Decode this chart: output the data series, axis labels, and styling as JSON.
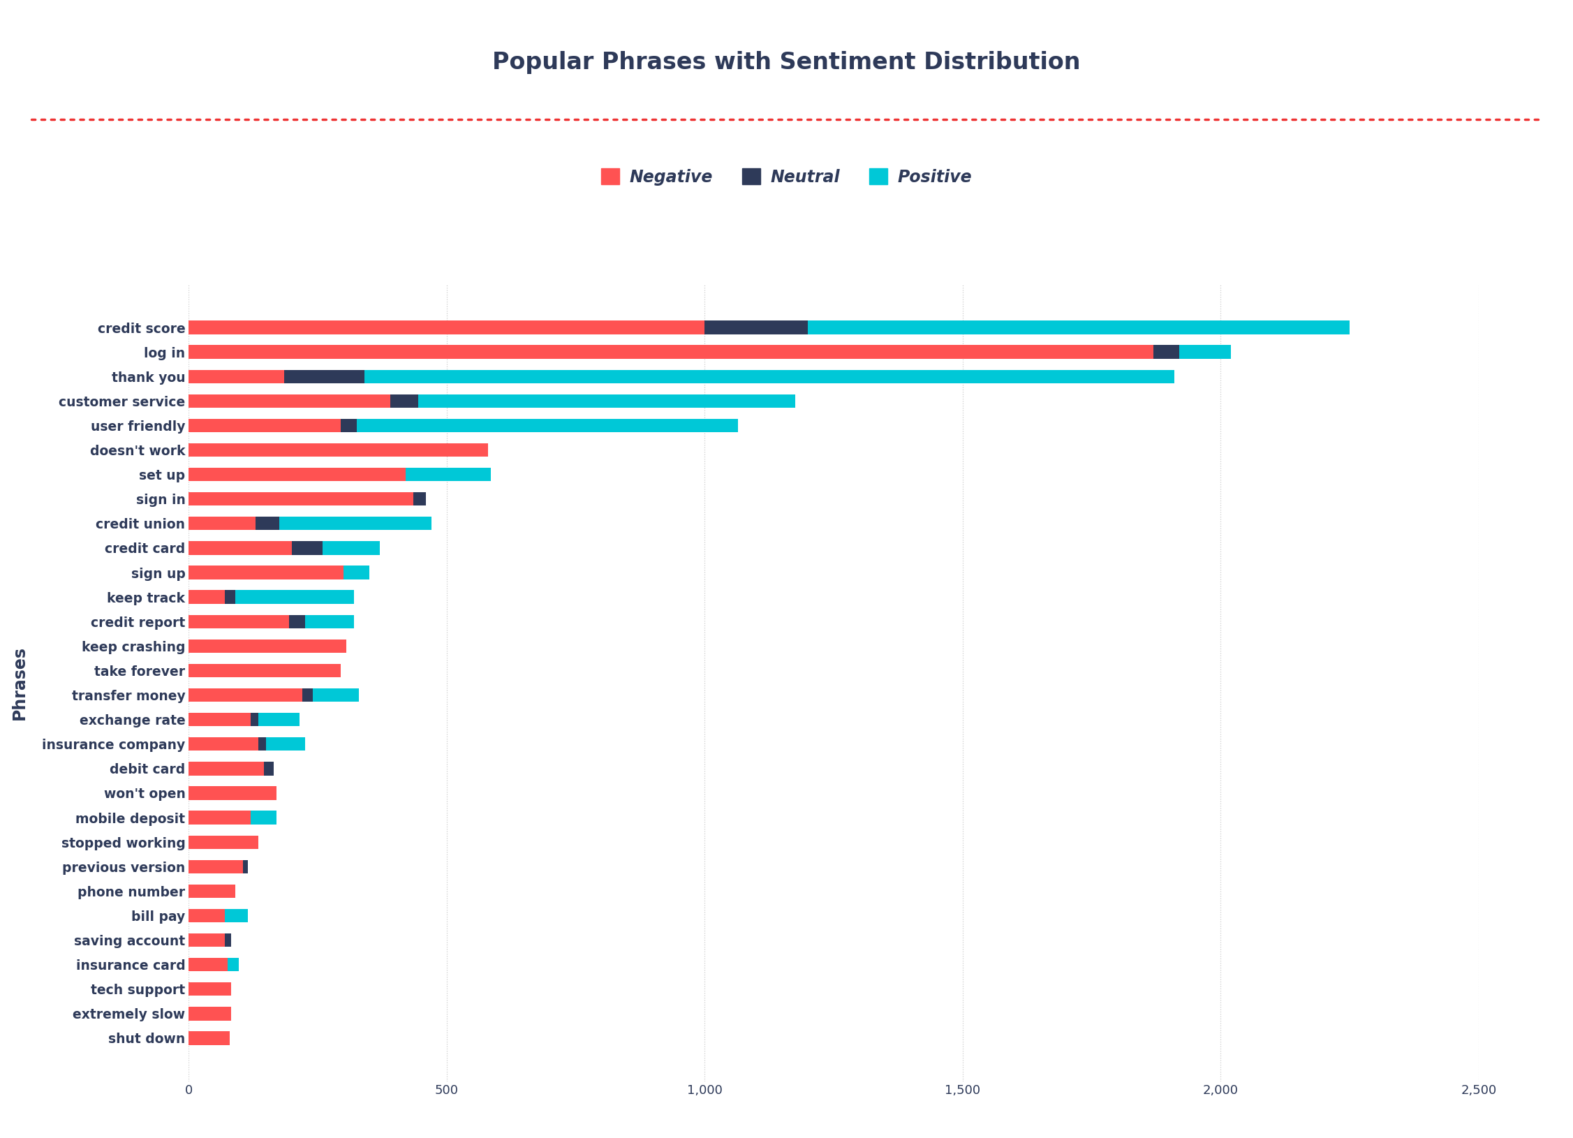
{
  "title": "Popular Phrases with Sentiment Distribution",
  "ylabel": "Phrases",
  "colors": {
    "negative": "#FF5252",
    "neutral": "#2E3A59",
    "positive": "#00C8D7"
  },
  "background_color": "#FFFFFF",
  "title_color": "#2E3A59",
  "dotted_line_color": "#EE3333",
  "categories": [
    "credit score",
    "log in",
    "thank you",
    "customer service",
    "user friendly",
    "doesn't work",
    "set up",
    "sign in",
    "credit union",
    "credit card",
    "sign up",
    "keep track",
    "credit report",
    "keep crashing",
    "take forever",
    "transfer money",
    "exchange rate",
    "insurance company",
    "debit card",
    "won't open",
    "mobile deposit",
    "stopped working",
    "previous version",
    "phone number",
    "bill pay",
    "saving account",
    "insurance card",
    "tech support",
    "extremely slow",
    "shut down"
  ],
  "negative": [
    1000,
    1870,
    185,
    390,
    295,
    580,
    420,
    435,
    130,
    200,
    300,
    70,
    195,
    305,
    295,
    220,
    120,
    135,
    145,
    170,
    120,
    135,
    105,
    90,
    70,
    70,
    75,
    82,
    82,
    80
  ],
  "neutral": [
    200,
    50,
    155,
    55,
    30,
    0,
    0,
    25,
    45,
    60,
    0,
    20,
    30,
    0,
    0,
    20,
    15,
    15,
    20,
    0,
    0,
    0,
    10,
    0,
    0,
    12,
    0,
    0,
    0,
    0
  ],
  "positive": [
    1050,
    100,
    1570,
    730,
    740,
    0,
    165,
    0,
    295,
    110,
    50,
    230,
    95,
    0,
    0,
    90,
    80,
    75,
    0,
    0,
    50,
    0,
    0,
    0,
    45,
    0,
    22,
    0,
    0,
    0
  ],
  "xlim": [
    0,
    2500
  ],
  "xticks": [
    0,
    500,
    1000,
    1500,
    2000,
    2500
  ],
  "bar_height": 0.55,
  "grid_color": "#CCCCCC"
}
